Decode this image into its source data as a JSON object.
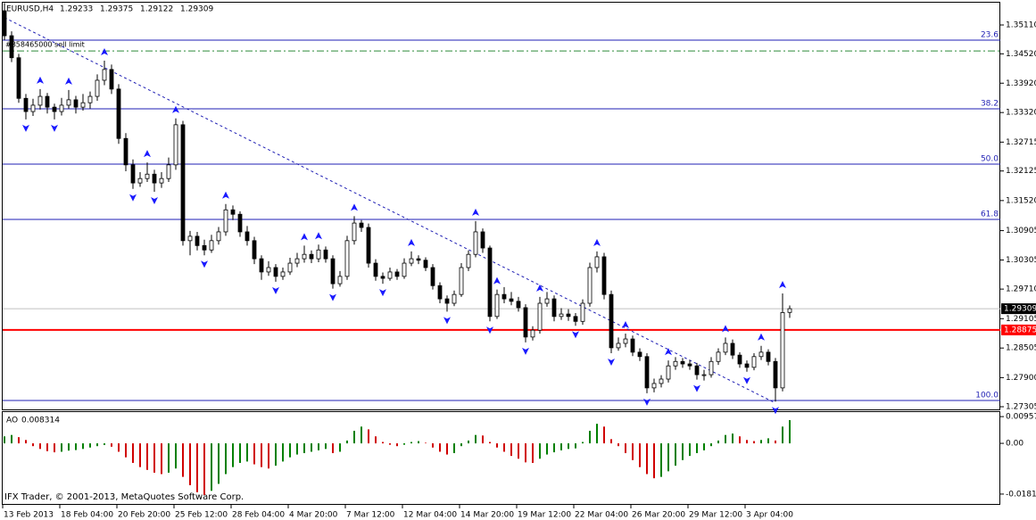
{
  "chart_data": {
    "type": "candlestick",
    "symbol": "EURUSD,H4",
    "ohlc": [
      [
        1.354,
        1.3556,
        1.348,
        1.3489
      ],
      [
        1.3489,
        1.3498,
        1.3435,
        1.3444
      ],
      [
        1.3444,
        1.3452,
        1.3352,
        1.3361
      ],
      [
        1.3361,
        1.337,
        1.3318,
        1.3334
      ],
      [
        1.3334,
        1.336,
        1.3325,
        1.3347
      ],
      [
        1.3347,
        1.338,
        1.3338,
        1.3365
      ],
      [
        1.3365,
        1.3372,
        1.333,
        1.3343
      ],
      [
        1.3343,
        1.335,
        1.3318,
        1.3334
      ],
      [
        1.3334,
        1.3362,
        1.3326,
        1.3347
      ],
      [
        1.3347,
        1.3378,
        1.334,
        1.3358
      ],
      [
        1.3358,
        1.3366,
        1.333,
        1.3343
      ],
      [
        1.3343,
        1.337,
        1.3336,
        1.3352
      ],
      [
        1.3352,
        1.3375,
        1.334,
        1.3365
      ],
      [
        1.3365,
        1.341,
        1.3356,
        1.3398
      ],
      [
        1.3398,
        1.3438,
        1.3388,
        1.342
      ],
      [
        1.342,
        1.343,
        1.337,
        1.338
      ],
      [
        1.338,
        1.339,
        1.3268,
        1.3279
      ],
      [
        1.3279,
        1.329,
        1.3212,
        1.3225
      ],
      [
        1.3225,
        1.3236,
        1.3176,
        1.3188
      ],
      [
        1.3188,
        1.321,
        1.318,
        1.3197
      ],
      [
        1.3197,
        1.323,
        1.319,
        1.3206
      ],
      [
        1.3206,
        1.3215,
        1.317,
        1.3188
      ],
      [
        1.3188,
        1.321,
        1.3178,
        1.3197
      ],
      [
        1.3197,
        1.324,
        1.319,
        1.3225
      ],
      [
        1.3225,
        1.332,
        1.3215,
        1.3307
      ],
      [
        1.3307,
        1.3315,
        1.306,
        1.307
      ],
      [
        1.307,
        1.309,
        1.304,
        1.3079
      ],
      [
        1.3079,
        1.3088,
        1.305,
        1.306
      ],
      [
        1.306,
        1.3072,
        1.304,
        1.3051
      ],
      [
        1.3051,
        1.3082,
        1.3045,
        1.307
      ],
      [
        1.307,
        1.3098,
        1.3062,
        1.3088
      ],
      [
        1.3088,
        1.3145,
        1.308,
        1.3133
      ],
      [
        1.3133,
        1.3142,
        1.3112,
        1.3124
      ],
      [
        1.3124,
        1.313,
        1.3078,
        1.3088
      ],
      [
        1.3088,
        1.31,
        1.306,
        1.307
      ],
      [
        1.307,
        1.3078,
        1.3022,
        1.3033
      ],
      [
        1.3033,
        1.304,
        1.299,
        1.3006
      ],
      [
        1.3006,
        1.3028,
        1.2998,
        1.3015
      ],
      [
        1.3015,
        1.3022,
        1.2986,
        1.2997
      ],
      [
        1.2997,
        1.3015,
        1.299,
        1.3006
      ],
      [
        1.3006,
        1.3035,
        1.3,
        1.3024
      ],
      [
        1.3024,
        1.3045,
        1.3016,
        1.3033
      ],
      [
        1.3033,
        1.306,
        1.3025,
        1.3042
      ],
      [
        1.3042,
        1.305,
        1.3024,
        1.3033
      ],
      [
        1.3033,
        1.3062,
        1.3026,
        1.3051
      ],
      [
        1.3051,
        1.3058,
        1.3025,
        1.3033
      ],
      [
        1.3033,
        1.304,
        1.2972,
        1.2982
      ],
      [
        1.2982,
        1.3008,
        1.2976,
        1.2997
      ],
      [
        1.2997,
        1.308,
        1.299,
        1.307
      ],
      [
        1.307,
        1.312,
        1.3062,
        1.3106
      ],
      [
        1.3106,
        1.3112,
        1.3088,
        1.3097
      ],
      [
        1.3097,
        1.3105,
        1.3015,
        1.3024
      ],
      [
        1.3024,
        1.3032,
        1.2988,
        1.2997
      ],
      [
        1.2997,
        1.3005,
        1.2982,
        1.2993
      ],
      [
        1.2993,
        1.3015,
        1.2988,
        1.3006
      ],
      [
        1.3006,
        1.3012,
        1.299,
        1.2997
      ],
      [
        1.2997,
        1.3034,
        1.2992,
        1.3024
      ],
      [
        1.3024,
        1.3048,
        1.3018,
        1.3033
      ],
      [
        1.3033,
        1.304,
        1.3022,
        1.303
      ],
      [
        1.303,
        1.3036,
        1.3008,
        1.3015
      ],
      [
        1.3015,
        1.3022,
        1.297,
        1.2978
      ],
      [
        1.2978,
        1.2985,
        1.2942,
        1.2951
      ],
      [
        1.2951,
        1.2958,
        1.2925,
        1.2942
      ],
      [
        1.2942,
        1.2968,
        1.2936,
        1.296
      ],
      [
        1.296,
        1.3024,
        1.2955,
        1.3015
      ],
      [
        1.3015,
        1.305,
        1.3008,
        1.3042
      ],
      [
        1.3042,
        1.311,
        1.3036,
        1.3088
      ],
      [
        1.3088,
        1.3095,
        1.3045,
        1.3055
      ],
      [
        1.3055,
        1.306,
        1.2905,
        1.2915
      ],
      [
        1.2915,
        1.297,
        1.291,
        1.296
      ],
      [
        1.296,
        1.2975,
        1.2942,
        1.2951
      ],
      [
        1.2951,
        1.2965,
        1.2938,
        1.2946
      ],
      [
        1.2946,
        1.2955,
        1.2925,
        1.2933
      ],
      [
        1.2933,
        1.294,
        1.2862,
        1.2873
      ],
      [
        1.2873,
        1.2895,
        1.2866,
        1.2887
      ],
      [
        1.2887,
        1.2955,
        1.288,
        1.2942
      ],
      [
        1.2942,
        1.2965,
        1.2935,
        1.2951
      ],
      [
        1.2951,
        1.2958,
        1.2905,
        1.2915
      ],
      [
        1.2915,
        1.2932,
        1.2908,
        1.292
      ],
      [
        1.292,
        1.293,
        1.2906,
        1.2915
      ],
      [
        1.2915,
        1.2922,
        1.2896,
        1.2905
      ],
      [
        1.2905,
        1.295,
        1.2898,
        1.2942
      ],
      [
        1.2942,
        1.3025,
        1.2935,
        1.3015
      ],
      [
        1.3015,
        1.3048,
        1.3005,
        1.3037
      ],
      [
        1.3037,
        1.3045,
        1.295,
        1.296
      ],
      [
        1.296,
        1.2968,
        1.284,
        1.2851
      ],
      [
        1.2851,
        1.2872,
        1.2845,
        1.286
      ],
      [
        1.286,
        1.288,
        1.2852,
        1.2869
      ],
      [
        1.2869,
        1.2876,
        1.2834,
        1.2842
      ],
      [
        1.2842,
        1.285,
        1.2824,
        1.2833
      ],
      [
        1.2833,
        1.284,
        1.2758,
        1.2769
      ],
      [
        1.2769,
        1.2788,
        1.276,
        1.2778
      ],
      [
        1.2778,
        1.2795,
        1.277,
        1.2787
      ],
      [
        1.2787,
        1.2825,
        1.278,
        1.2814
      ],
      [
        1.2814,
        1.2832,
        1.2806,
        1.2823
      ],
      [
        1.2823,
        1.283,
        1.281,
        1.2818
      ],
      [
        1.2818,
        1.2826,
        1.2806,
        1.2814
      ],
      [
        1.2814,
        1.282,
        1.2786,
        1.2796
      ],
      [
        1.2796,
        1.2806,
        1.2784,
        1.2796
      ],
      [
        1.2796,
        1.2832,
        1.279,
        1.2823
      ],
      [
        1.2823,
        1.285,
        1.2816,
        1.2842
      ],
      [
        1.2842,
        1.2872,
        1.2836,
        1.286
      ],
      [
        1.286,
        1.2868,
        1.2828,
        1.2836
      ],
      [
        1.2836,
        1.2842,
        1.281,
        1.2818
      ],
      [
        1.2818,
        1.2825,
        1.2802,
        1.2811
      ],
      [
        1.2811,
        1.284,
        1.2805,
        1.2833
      ],
      [
        1.2833,
        1.2855,
        1.2826,
        1.2842
      ],
      [
        1.2842,
        1.2848,
        1.2815,
        1.2823
      ],
      [
        1.2823,
        1.283,
        1.2741,
        1.2769
      ],
      [
        1.2769,
        1.2962,
        1.2762,
        1.2923
      ],
      [
        1.29233,
        1.29375,
        1.29122,
        1.29309
      ]
    ],
    "ylim": [
      1.27232,
      1.35566
    ],
    "yticks": [
      {
        "value": 1.3511,
        "label": "1.35110"
      },
      {
        "value": 1.3452,
        "label": "1.34520"
      },
      {
        "value": 1.3392,
        "label": "1.33920"
      },
      {
        "value": 1.3332,
        "label": "1.33320"
      },
      1.32715,
      1.32125,
      {
        "value": 1.3152,
        "label": "1.31520"
      },
      1.30905,
      1.30305,
      {
        "value": 1.2971,
        "label": "1.29710"
      },
      1.29105,
      1.28505,
      {
        "value": 1.279,
        "label": "1.27900"
      },
      1.27305
    ],
    "xticks": [
      {
        "value": 0,
        "label": "13 Feb 2013"
      },
      {
        "value": 8,
        "label": "18 Feb 04:00"
      },
      {
        "value": 16,
        "label": "20 Feb 20:00"
      },
      {
        "value": 24,
        "label": "25 Feb 12:00"
      },
      {
        "value": 32,
        "label": "28 Feb 04:00"
      },
      {
        "value": 40,
        "label": "4 Mar 20:00"
      },
      {
        "value": 48,
        "label": "7 Mar 12:00"
      },
      {
        "value": 56,
        "label": "12 Mar 04:00"
      },
      {
        "value": 64,
        "label": "14 Mar 20:00"
      },
      {
        "value": 72,
        "label": "19 Mar 12:00"
      },
      {
        "value": 80,
        "label": "22 Mar 04:00"
      },
      {
        "value": 88,
        "label": "26 Mar 20:00"
      },
      {
        "value": 96,
        "label": "29 Mar 12:00"
      },
      {
        "value": 104,
        "label": "3 Apr 04:00"
      }
    ],
    "levels": [
      {
        "label": "23.6",
        "price": 1.348
      },
      {
        "label": "38.2",
        "price": 1.33396
      },
      {
        "label": "50.0",
        "price": 1.32265
      },
      {
        "label": "61.8",
        "price": 1.31134
      },
      {
        "label": "100.0",
        "price": 1.27433
      }
    ],
    "level_color": "#1f1fb4",
    "support": {
      "price": 1.28875,
      "color": "#ff0000"
    },
    "order": {
      "label": "#858465000 sell limit",
      "price": 1.3458,
      "color": "#2e8b3a"
    },
    "trendline": {
      "from": [
        0,
        1.3526
      ],
      "to": [
        108,
        1.2738
      ],
      "color": "#1f1fb4"
    },
    "fractals_up": [
      5,
      9,
      14,
      20,
      24,
      31,
      42,
      44,
      49,
      57,
      66,
      69,
      75,
      83,
      87,
      93,
      101,
      106,
      109
    ],
    "fractals_down": [
      3,
      7,
      18,
      21,
      28,
      38,
      46,
      53,
      62,
      68,
      73,
      80,
      85,
      90,
      97,
      104,
      108
    ],
    "fractal_color": "#1a1aff",
    "indicator": {
      "type": "bar",
      "name": "AO",
      "values": [
        0.0025,
        0.003,
        0.0022,
        0.0012,
        -0.001,
        -0.002,
        -0.0028,
        -0.0032,
        -0.003,
        -0.0026,
        -0.0024,
        -0.002,
        -0.0015,
        -0.001,
        -0.0006,
        -0.0012,
        -0.003,
        -0.005,
        -0.007,
        -0.0085,
        -0.0095,
        -0.0105,
        -0.011,
        -0.0105,
        -0.009,
        -0.012,
        -0.015,
        -0.0175,
        -0.0185,
        -0.017,
        -0.0145,
        -0.011,
        -0.0085,
        -0.007,
        -0.0065,
        -0.0075,
        -0.0085,
        -0.009,
        -0.008,
        -0.0065,
        -0.005,
        -0.004,
        -0.0035,
        -0.003,
        -0.0025,
        -0.002,
        -0.0035,
        -0.003,
        0.001,
        0.0045,
        0.006,
        0.005,
        0.0025,
        0.0005,
        -0.0005,
        -0.001,
        -0.0005,
        0.0005,
        0.0008,
        0.0002,
        -0.0015,
        -0.003,
        -0.004,
        -0.0035,
        -0.001,
        0.001,
        0.003,
        0.0028,
        0.0005,
        -0.0015,
        -0.003,
        -0.0045,
        -0.0055,
        -0.0068,
        -0.007,
        -0.0055,
        -0.004,
        -0.0032,
        -0.0025,
        -0.002,
        -0.0018,
        0.0005,
        0.0045,
        0.007,
        0.006,
        0.0015,
        -0.001,
        -0.0035,
        -0.006,
        -0.0085,
        -0.011,
        -0.0125,
        -0.012,
        -0.01,
        -0.008,
        -0.006,
        -0.0045,
        -0.0035,
        -0.0025,
        -0.001,
        0.001,
        0.003,
        0.0035,
        0.0025,
        0.0012,
        0.0008,
        0.0012,
        0.0018,
        0.001,
        0.006,
        0.008314
      ],
      "ylim": [
        -0.0217,
        0.0112
      ],
      "yticks": [
        0.009575,
        {
          "value": 0,
          "label": "0.00"
        },
        -0.018166
      ],
      "up_color": "#008000",
      "down_color": "#d00000"
    },
    "copyright": "IFX Trader, © 2001-2013, MetaQuotes Software Corp."
  }
}
